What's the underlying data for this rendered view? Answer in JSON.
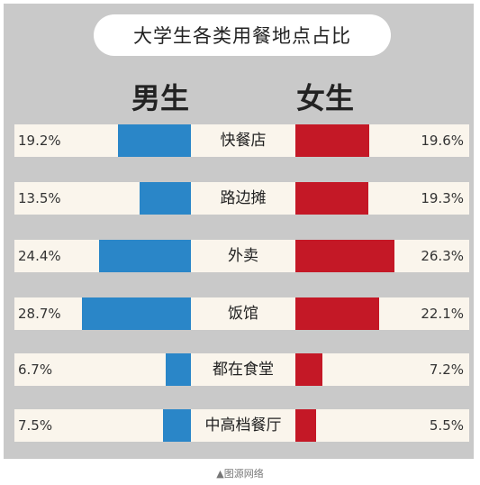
{
  "chart_data": {
    "type": "bar",
    "title": "大学生各类用餐地点占比",
    "categories": [
      "快餐店",
      "路边摊",
      "外卖",
      "饭馆",
      "都在食堂",
      "中高档餐厅"
    ],
    "series": [
      {
        "name": "男生",
        "values": [
          19.2,
          13.5,
          24.4,
          28.7,
          6.7,
          7.5
        ],
        "labels": [
          "19.2%",
          "13.5%",
          "24.4%",
          "28.7%",
          "6.7%",
          "7.5%"
        ],
        "color": "#2a86c8"
      },
      {
        "name": "女生",
        "values": [
          19.6,
          19.3,
          26.3,
          22.1,
          7.2,
          5.5
        ],
        "labels": [
          "19.6%",
          "19.3%",
          "26.3%",
          "22.1%",
          "7.2%",
          "5.5%"
        ],
        "color": "#c41826"
      }
    ],
    "unit": "%"
  },
  "footer": {
    "source_text": "▲图源网络"
  }
}
